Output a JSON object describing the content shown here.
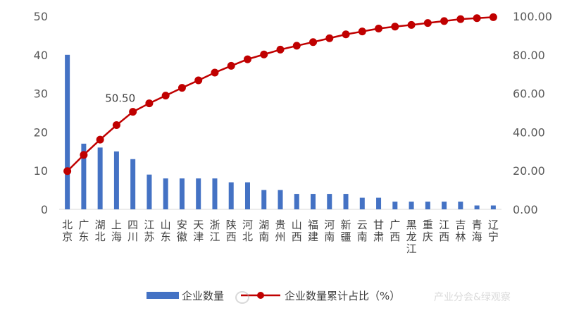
{
  "chart_data": {
    "type": "bar+line",
    "categories": [
      "北京",
      "广东",
      "湖北",
      "上海",
      "四川",
      "江苏",
      "山东",
      "安徽",
      "天津",
      "浙江",
      "陕西",
      "河北",
      "湖南",
      "贵州",
      "山西",
      "福建",
      "河南",
      "新疆",
      "云南",
      "甘肃",
      "广西",
      "黑龙江",
      "重庆",
      "江西",
      "吉林",
      "青海",
      "辽宁"
    ],
    "series": [
      {
        "name": "企业数量",
        "type": "bar",
        "axis": "left",
        "color": "#4472C4",
        "values": [
          40,
          17,
          16,
          15,
          13,
          9,
          8,
          8,
          8,
          8,
          7,
          7,
          5,
          5,
          4,
          4,
          4,
          4,
          3,
          3,
          2,
          2,
          2,
          2,
          2,
          1,
          1
        ]
      },
      {
        "name": "企业数量累计占比（%）",
        "type": "line",
        "axis": "right",
        "color": "#C00000",
        "values": [
          19.8,
          28.2,
          36.1,
          43.6,
          50.5,
          54.9,
          58.9,
          62.9,
          66.8,
          70.8,
          74.3,
          77.7,
          80.2,
          82.7,
          84.7,
          86.6,
          88.6,
          90.6,
          92.1,
          93.6,
          94.6,
          95.5,
          96.5,
          97.5,
          98.5,
          99.0,
          99.5
        ]
      }
    ],
    "y_left": {
      "min": 0,
      "max": 50,
      "ticks": [
        "0",
        "10",
        "20",
        "30",
        "40",
        "50"
      ]
    },
    "y_right": {
      "min": 0,
      "max": 100,
      "ticks": [
        "0.00",
        "20.00",
        "40.00",
        "60.00",
        "80.00",
        "100.00"
      ]
    },
    "annotation": {
      "category_index": 4,
      "text": "50.50"
    },
    "grid": false,
    "legend_position": "bottom"
  },
  "legend": {
    "bar_label": "企业数量",
    "line_label": "企业数量累计占比（%）"
  },
  "watermark": {
    "text": "产业分会&绿观察"
  }
}
